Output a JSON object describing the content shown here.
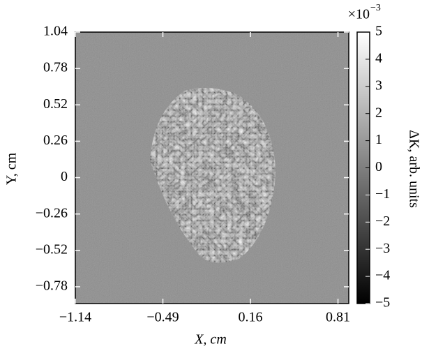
{
  "chart_data": {
    "type": "image",
    "xlabel": "X, cm",
    "ylabel": "Y, cm",
    "xlim": [
      -1.14,
      0.89
    ],
    "ylim": [
      -0.9,
      1.04
    ],
    "xticks": [
      {
        "value": -1.14,
        "label": "−1.14"
      },
      {
        "value": -0.49,
        "label": "−0.49"
      },
      0.16,
      0.81
    ],
    "yticks": [
      {
        "value": -0.78,
        "label": "−0.78"
      },
      {
        "value": -0.52,
        "label": "−0.52"
      },
      {
        "value": -0.26,
        "label": "−0.26"
      },
      0,
      0.26,
      0.52,
      0.78,
      1.04
    ],
    "colorbar": {
      "label": "ΔK, arb. units",
      "multiplier": "×10",
      "exponent": "−3",
      "lim": [
        -5,
        5
      ],
      "ticks": [
        {
          "value": -5,
          "label": "−5"
        },
        {
          "value": -4,
          "label": "−4"
        },
        {
          "value": -3,
          "label": "−3"
        },
        {
          "value": -2,
          "label": "−2"
        },
        {
          "value": -1,
          "label": "−1"
        },
        0,
        1,
        2,
        3,
        4,
        5
      ],
      "colors": [
        "#000000",
        "#ffffff"
      ]
    }
  }
}
